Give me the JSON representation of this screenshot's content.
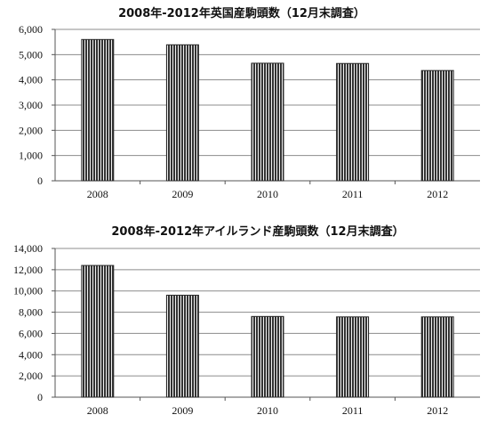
{
  "chart_data": [
    {
      "type": "bar",
      "title": "2008年-2012年英国産駒頭数（12月末調査）",
      "categories": [
        "2008",
        "2009",
        "2010",
        "2011",
        "2012"
      ],
      "values": [
        5600,
        5390,
        4660,
        4650,
        4370
      ],
      "ylim": [
        0,
        6000
      ],
      "yticks": [
        0,
        1000,
        2000,
        3000,
        4000,
        5000,
        6000
      ],
      "ytick_labels": [
        "0",
        "1,000",
        "2,000",
        "3,000",
        "4,000",
        "5,000",
        "6,000"
      ],
      "xlabel": "",
      "ylabel": "",
      "grid": true,
      "bar_color": "#3a3a3a"
    },
    {
      "type": "bar",
      "title": "2008年-2012年アイルランド産駒頭数（12月末調査）",
      "categories": [
        "2008",
        "2009",
        "2010",
        "2011",
        "2012"
      ],
      "values": [
        12400,
        9600,
        7600,
        7560,
        7560
      ],
      "ylim": [
        0,
        14000
      ],
      "yticks": [
        0,
        2000,
        4000,
        6000,
        8000,
        10000,
        12000,
        14000
      ],
      "ytick_labels": [
        "0",
        "2,000",
        "4,000",
        "6,000",
        "8,000",
        "10,000",
        "12,000",
        "14,000"
      ],
      "xlabel": "",
      "ylabel": "",
      "grid": true,
      "bar_color": "#3a3a3a"
    }
  ]
}
